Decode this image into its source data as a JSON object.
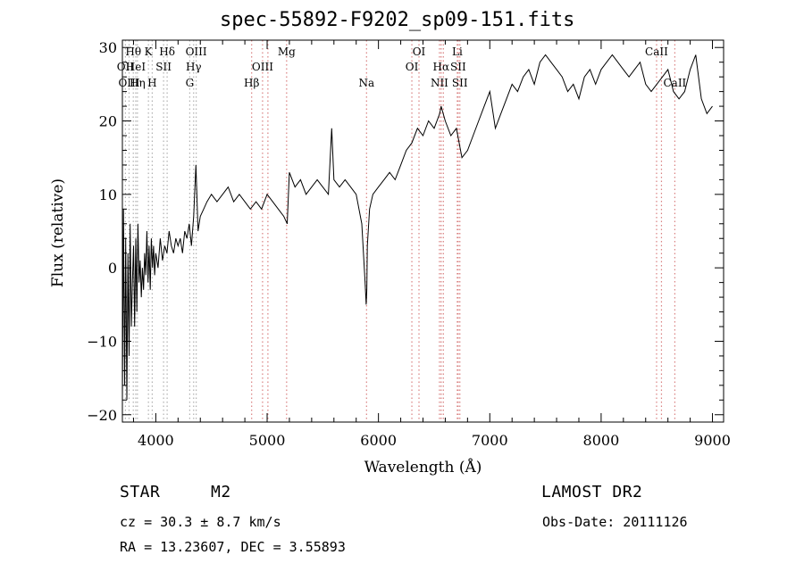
{
  "chart_data": {
    "type": "line",
    "title": "spec-55892-F9202_sp09-151.fits",
    "xlabel": "Wavelength (Å)",
    "ylabel": "Flux (relative)",
    "xlim": [
      3700,
      9100
    ],
    "ylim": [
      -21,
      31
    ],
    "xticks": [
      "4000",
      "5000",
      "6000",
      "7000",
      "8000",
      "9000"
    ],
    "yticks": [
      "-20",
      "-10",
      "0",
      "10",
      "20",
      "30"
    ],
    "series": [
      {
        "x": [
          3700,
          3710,
          3720,
          3730,
          3740,
          3750,
          3760,
          3770,
          3780,
          3790,
          3800,
          3810,
          3820,
          3830,
          3840,
          3850,
          3860,
          3870,
          3880,
          3890,
          3900,
          3910,
          3920,
          3930,
          3940,
          3950,
          3960,
          3970,
          3980,
          3990,
          4000,
          4020,
          4040,
          4060,
          4080,
          4100,
          4120,
          4140,
          4160,
          4180,
          4200,
          4220,
          4240,
          4260,
          4280,
          4300,
          4320,
          4340,
          4360,
          4380,
          4400,
          4430,
          4460,
          4500,
          4550,
          4600,
          4650,
          4700,
          4750,
          4800,
          4850,
          4900,
          4950,
          5000,
          5050,
          5100,
          5150,
          5180,
          5200,
          5250,
          5300,
          5350,
          5400,
          5450,
          5500,
          5550,
          5580,
          5600,
          5650,
          5700,
          5750,
          5800,
          5850,
          5880,
          5890,
          5895,
          5900,
          5920,
          5950,
          6000,
          6050,
          6100,
          6150,
          6200,
          6250,
          6300,
          6350,
          6400,
          6450,
          6500,
          6550,
          6563,
          6600,
          6650,
          6700,
          6750,
          6800,
          6850,
          6900,
          6950,
          7000,
          7050,
          7100,
          7150,
          7200,
          7250,
          7300,
          7350,
          7400,
          7450,
          7500,
          7550,
          7600,
          7650,
          7700,
          7750,
          7800,
          7850,
          7900,
          7950,
          8000,
          8050,
          8100,
          8150,
          8200,
          8250,
          8300,
          8350,
          8400,
          8450,
          8500,
          8550,
          8600,
          8650,
          8700,
          8750,
          8800,
          8850,
          8900,
          8950,
          9000
        ],
        "y": [
          -18,
          8,
          -16,
          4,
          -18,
          2,
          -12,
          6,
          -8,
          -2,
          3,
          -8,
          4,
          -6,
          6,
          -2,
          1,
          -4,
          0,
          -3,
          2,
          -1,
          5,
          -2,
          3,
          -3,
          4,
          0,
          3,
          -1,
          2,
          0,
          4,
          1,
          3,
          2,
          5,
          3,
          2,
          4,
          3,
          4,
          2,
          5,
          4,
          6,
          3,
          7,
          14,
          5,
          7,
          8,
          9,
          10,
          9,
          10,
          11,
          9,
          10,
          9,
          8,
          9,
          8,
          10,
          9,
          8,
          7,
          6,
          13,
          11,
          12,
          10,
          11,
          12,
          11,
          10,
          19,
          12,
          11,
          12,
          11,
          10,
          6,
          -2,
          -5,
          -3,
          3,
          8,
          10,
          11,
          12,
          13,
          12,
          14,
          16,
          17,
          19,
          18,
          20,
          19,
          21,
          22,
          20,
          18,
          19,
          15,
          16,
          18,
          20,
          22,
          24,
          19,
          21,
          23,
          25,
          24,
          26,
          27,
          25,
          28,
          29,
          28,
          27,
          26,
          24,
          25,
          23,
          26,
          27,
          25,
          27,
          28,
          29,
          28,
          27,
          26,
          27,
          28,
          25,
          24,
          25,
          26,
          27,
          24,
          23,
          24,
          27,
          29,
          23,
          21,
          22
        ]
      }
    ],
    "lines": [
      {
        "label": "Hθ",
        "x": 3798,
        "color": "#b0b0b0",
        "row": 0
      },
      {
        "label": "OII",
        "x": 3727,
        "color": "#b0b0b0",
        "row": 1
      },
      {
        "label": "OIII",
        "x": 3760,
        "color": "#b0b0b0",
        "row": 2
      },
      {
        "label": "HeI",
        "x": 3820,
        "color": "#b0b0b0",
        "row": 1
      },
      {
        "label": "Hη",
        "x": 3835,
        "color": "#b0b0b0",
        "row": 2
      },
      {
        "label": "K",
        "x": 3934,
        "color": "#b0b0b0",
        "row": 0
      },
      {
        "label": "H",
        "x": 3968,
        "color": "#b0b0b0",
        "row": 2
      },
      {
        "label": "SII",
        "x": 4070,
        "color": "#b0b0b0",
        "row": 1
      },
      {
        "label": "Hδ",
        "x": 4102,
        "color": "#b0b0b0",
        "row": 0
      },
      {
        "label": "OIII",
        "x": 4363,
        "color": "#b0b0b0",
        "row": 0
      },
      {
        "label": "Hγ",
        "x": 4340,
        "color": "#b0b0b0",
        "row": 1
      },
      {
        "label": "G",
        "x": 4305,
        "color": "#b0b0b0",
        "row": 2
      },
      {
        "label": "Hβ",
        "x": 4861,
        "color": "#d98080",
        "row": 2
      },
      {
        "label": "OIII",
        "x": 4959,
        "color": "#d98080",
        "row": 1
      },
      {
        "label": "OIII",
        "x": 5007,
        "color": "#d98080",
        "row": -1
      },
      {
        "label": "Mg",
        "x": 5175,
        "color": "#d98080",
        "row": 0
      },
      {
        "label": "Na",
        "x": 5893,
        "color": "#d98080",
        "row": 2
      },
      {
        "label": "OI",
        "x": 6300,
        "color": "#d98080",
        "row": 1
      },
      {
        "label": "OI",
        "x": 6364,
        "color": "#d98080",
        "row": 0
      },
      {
        "label": "NII",
        "x": 6548,
        "color": "#d98080",
        "row": 2
      },
      {
        "label": "Hα",
        "x": 6563,
        "color": "#d98080",
        "row": 1
      },
      {
        "label": "NII",
        "x": 6583,
        "color": "#d98080",
        "row": -1
      },
      {
        "label": "Li",
        "x": 6708,
        "color": "#d98080",
        "row": 0
      },
      {
        "label": "SII",
        "x": 6716,
        "color": "#d98080",
        "row": 1
      },
      {
        "label": "SII",
        "x": 6731,
        "color": "#d98080",
        "row": 2
      },
      {
        "label": "CaII",
        "x": 8498,
        "color": "#d98080",
        "row": 0
      },
      {
        "label": "CaII",
        "x": 8542,
        "color": "#d98080",
        "row": -1
      },
      {
        "label": "CaII",
        "x": 8662,
        "color": "#d98080",
        "row": 2
      }
    ]
  },
  "info": {
    "object_class": "STAR",
    "subclass": "M2",
    "survey": "LAMOST DR2",
    "redshift": "cz = 30.3 ± 8.7 km/s",
    "obs_date": "Obs-Date: 20111126",
    "coords": "RA =  13.23607, DEC =   3.55893"
  }
}
